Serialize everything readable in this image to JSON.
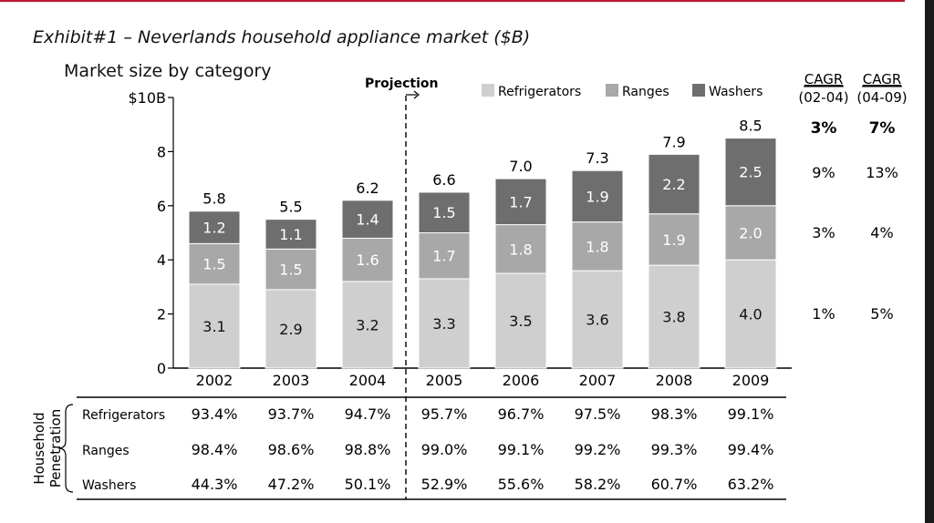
{
  "exhibit_title": "Exhibit#1 – Neverlands household appliance market ($B)",
  "colors": {
    "refrigerators": "#cfcfcf",
    "ranges": "#a8a8a8",
    "washers": "#6e6e6e",
    "accent_rule": "#c8102e"
  },
  "chart_data": {
    "type": "bar",
    "stacked": true,
    "title": "Market size by category",
    "y_unit_label": "$10B",
    "ylim": [
      0,
      10
    ],
    "y_ticks": [
      "0",
      "2",
      "4",
      "6",
      "8"
    ],
    "categories": [
      "2002",
      "2003",
      "2004",
      "2005",
      "2006",
      "2007",
      "2008",
      "2009"
    ],
    "series": [
      {
        "name": "Refrigerators",
        "values": [
          3.1,
          2.9,
          3.2,
          3.3,
          3.5,
          3.6,
          3.8,
          4.0
        ],
        "labels": [
          "3.1",
          "2.9",
          "3.2",
          "3.3",
          "3.5",
          "3.6",
          "3.8",
          "4.0"
        ]
      },
      {
        "name": "Ranges",
        "values": [
          1.5,
          1.5,
          1.6,
          1.7,
          1.8,
          1.8,
          1.9,
          2.0
        ],
        "labels": [
          "1.5",
          "1.5",
          "1.6",
          "1.7",
          "1.8",
          "1.8",
          "1.9",
          "2.0"
        ]
      },
      {
        "name": "Washers",
        "values": [
          1.2,
          1.1,
          1.4,
          1.5,
          1.7,
          1.9,
          2.2,
          2.5
        ],
        "labels": [
          "1.2",
          "1.1",
          "1.4",
          "1.5",
          "1.7",
          "1.9",
          "2.2",
          "2.5"
        ]
      }
    ],
    "totals": [
      5.8,
      5.5,
      6.2,
      6.6,
      7.0,
      7.3,
      7.9,
      8.5
    ],
    "total_labels": [
      "5.8",
      "5.5",
      "6.2",
      "6.6",
      "7.0",
      "7.3",
      "7.9",
      "8.5"
    ],
    "legend_placement": "top-right",
    "grid": false,
    "projection_label": "Projection",
    "projection_starts_after": "2004",
    "cagr": {
      "headers": [
        {
          "top": "CAGR",
          "bottom": "(02-04)"
        },
        {
          "top": "CAGR",
          "bottom": "(04-09)"
        }
      ],
      "total": [
        "3%",
        "7%"
      ],
      "washers": [
        "9%",
        "13%"
      ],
      "ranges": [
        "3%",
        "4%"
      ],
      "refrigerators": [
        "1%",
        "5%"
      ]
    },
    "penetration": {
      "group_label_lines": [
        "Household",
        "Penetration"
      ],
      "rows": [
        {
          "label": "Refrigerators",
          "values": [
            "93.4%",
            "93.7%",
            "94.7%",
            "95.7%",
            "96.7%",
            "97.5%",
            "98.3%",
            "99.1%"
          ]
        },
        {
          "label": "Ranges",
          "values": [
            "98.4%",
            "98.6%",
            "98.8%",
            "99.0%",
            "99.1%",
            "99.2%",
            "99.3%",
            "99.4%"
          ]
        },
        {
          "label": "Washers",
          "values": [
            "44.3%",
            "47.2%",
            "50.1%",
            "52.9%",
            "55.6%",
            "58.2%",
            "60.7%",
            "63.2%"
          ]
        }
      ]
    }
  }
}
